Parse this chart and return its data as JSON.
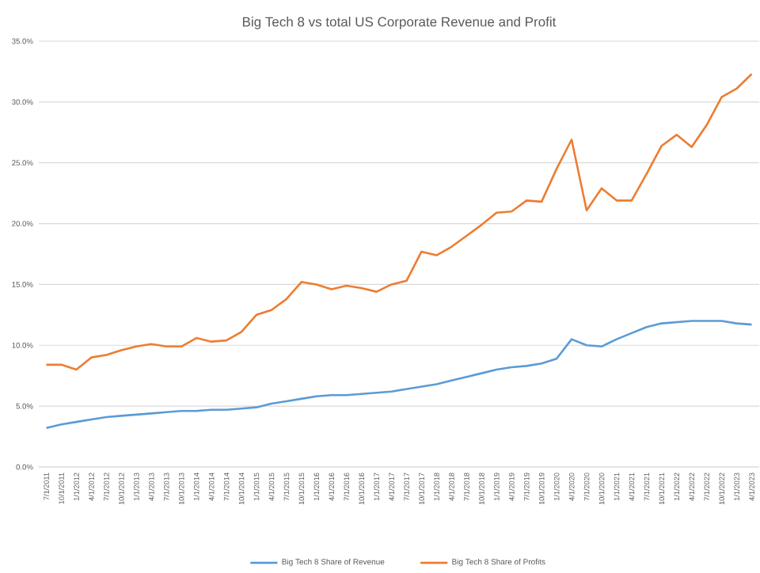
{
  "chart_data": {
    "type": "line",
    "title": "Big Tech 8 vs total US Corporate Revenue and Profit",
    "categories": [
      "7/1/2011",
      "10/1/2011",
      "1/1/2012",
      "4/1/2012",
      "7/1/2012",
      "10/1/2012",
      "1/1/2013",
      "4/1/2013",
      "7/1/2013",
      "10/1/2013",
      "1/1/2014",
      "4/1/2014",
      "7/1/2014",
      "10/1/2014",
      "1/1/2015",
      "4/1/2015",
      "7/1/2015",
      "10/1/2015",
      "1/1/2016",
      "4/1/2016",
      "7/1/2016",
      "10/1/2016",
      "1/1/2017",
      "4/1/2017",
      "7/1/2017",
      "10/1/2017",
      "1/1/2018",
      "4/1/2018",
      "7/1/2018",
      "10/1/2018",
      "1/1/2019",
      "4/1/2019",
      "7/1/2019",
      "10/1/2019",
      "1/1/2020",
      "4/1/2020",
      "7/1/2020",
      "10/1/2020",
      "1/1/2021",
      "4/1/2021",
      "7/1/2021",
      "10/1/2021",
      "1/1/2022",
      "4/1/2022",
      "7/1/2022",
      "10/1/2022",
      "1/1/2023",
      "4/1/2023"
    ],
    "series": [
      {
        "name": "Big Tech 8 Share of Revenue",
        "color": "#5b9bd5",
        "values": [
          3.2,
          3.5,
          3.7,
          3.9,
          4.1,
          4.2,
          4.3,
          4.4,
          4.5,
          4.6,
          4.6,
          4.7,
          4.7,
          4.8,
          4.9,
          5.2,
          5.4,
          5.6,
          5.8,
          5.9,
          5.9,
          6.0,
          6.1,
          6.2,
          6.4,
          6.6,
          6.8,
          7.1,
          7.4,
          7.7,
          8.0,
          8.2,
          8.3,
          8.5,
          8.9,
          10.5,
          10.0,
          9.9,
          10.5,
          11.0,
          11.5,
          11.8,
          11.9,
          12.0,
          12.0,
          12.0,
          11.8,
          11.7
        ]
      },
      {
        "name": "Big Tech 8 Share of Profits",
        "color": "#ed7d31",
        "values": [
          8.4,
          8.4,
          8.0,
          9.0,
          9.2,
          9.6,
          9.9,
          10.1,
          9.9,
          9.9,
          10.6,
          10.3,
          10.4,
          11.1,
          12.5,
          12.9,
          13.8,
          15.2,
          15.0,
          14.6,
          14.9,
          14.7,
          14.4,
          15.0,
          15.3,
          17.7,
          17.4,
          18.1,
          19.0,
          19.9,
          20.9,
          21.0,
          21.9,
          21.8,
          24.5,
          26.9,
          21.1,
          22.9,
          21.9,
          21.9,
          24.1,
          26.4,
          27.3,
          26.3,
          28.1,
          30.4,
          31.1,
          32.3
        ]
      }
    ],
    "ylim": [
      0,
      35
    ],
    "yticks": [
      {
        "value": 0,
        "label": "0.0%"
      },
      {
        "value": 5,
        "label": "5.0%"
      },
      {
        "value": 10,
        "label": "10.0%"
      },
      {
        "value": 15,
        "label": "15.0%"
      },
      {
        "value": 20,
        "label": "20.0%"
      },
      {
        "value": 25,
        "label": "25.0%"
      },
      {
        "value": 30,
        "label": "30.0%"
      },
      {
        "value": 35,
        "label": "35.0%"
      }
    ],
    "grid": "y",
    "legend": "bottom",
    "marker": "none",
    "line_style": "solid"
  }
}
